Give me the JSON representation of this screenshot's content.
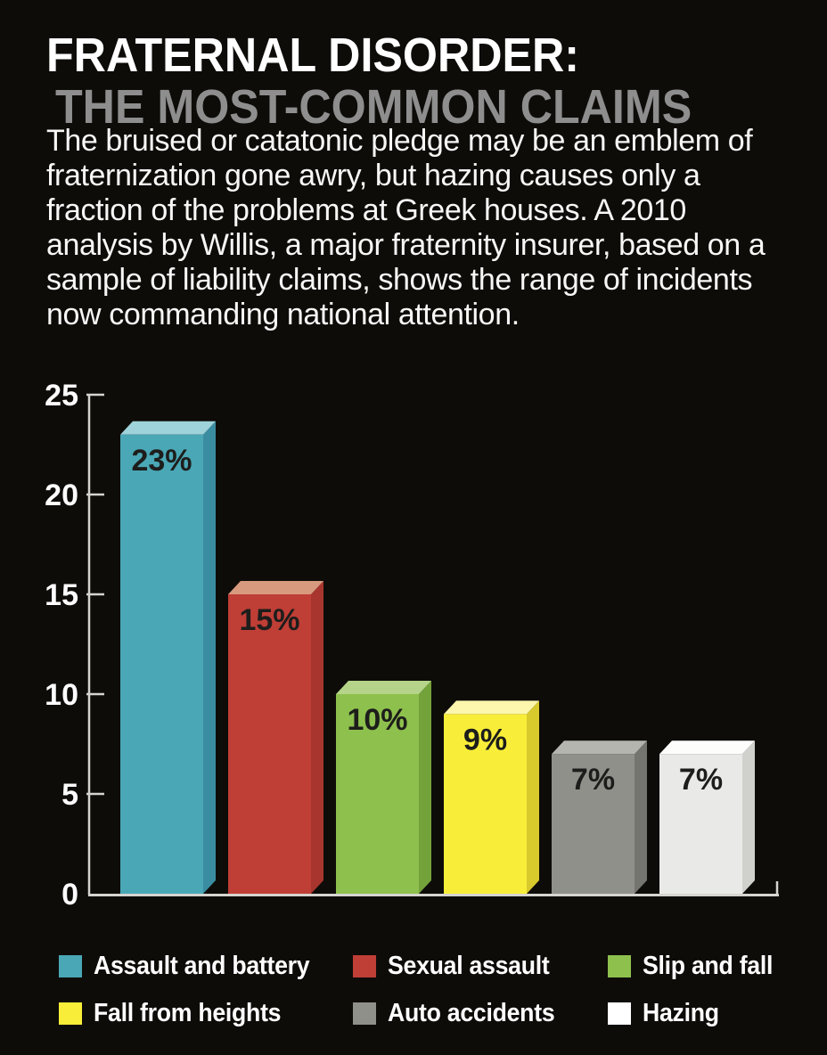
{
  "page": {
    "background": "#0e0c09"
  },
  "header": {
    "title": "FRATERNAL DISORDER:",
    "subtitle": "THE MOST-COMMON CLAIMS",
    "title_color": "#ffffff",
    "subtitle_color": "#8e8e8e"
  },
  "intro": {
    "text": "The bruised or catatonic pledge may be an emblem of fraternization gone awry, but hazing causes only a fraction of the problems at Greek houses. A 2010 analysis by Willis, a major fraternity insurer, based on a sample of liability claims, shows the range of incidents now commanding national attention."
  },
  "chart_data": {
    "type": "bar",
    "style": "3d-extruded",
    "title": "",
    "xlabel": "",
    "ylabel": "",
    "categories": [
      "Assault and battery",
      "Sexual assault",
      "Slip and fall",
      "Fall from heights",
      "Auto accidents",
      "Hazing"
    ],
    "values": [
      23,
      15,
      10,
      9,
      7,
      7
    ],
    "value_labels": [
      "23%",
      "15%",
      "10%",
      "9%",
      "7%",
      "7%"
    ],
    "ylim": [
      0,
      25
    ],
    "yticks": [
      0,
      5,
      10,
      15,
      20,
      25
    ],
    "grid": false,
    "legend_position": "bottom",
    "axis_color": "#d6d4cf",
    "tick_label_color": "#fdfdfd",
    "bar_label_color": "#1d1d1b",
    "colors": [
      {
        "front": "#4aa7b6",
        "top": "#9ed3db",
        "side": "#3a8da0"
      },
      {
        "front": "#bf3e36",
        "top": "#d89a7f",
        "side": "#a8362e"
      },
      {
        "front": "#8ec04d",
        "top": "#b5d489",
        "side": "#73a23b"
      },
      {
        "front": "#f8ee39",
        "top": "#fcf7ad",
        "side": "#d8c92d"
      },
      {
        "front": "#90908b",
        "top": "#b5b5b0",
        "side": "#757570"
      },
      {
        "front": "#e9e9e7",
        "top": "#fdfdfc",
        "side": "#d0d0cc"
      }
    ]
  },
  "legend": {
    "items": [
      {
        "label": "Assault and battery",
        "color": "#4aa7b6"
      },
      {
        "label": "Sexual assault",
        "color": "#bf3e36"
      },
      {
        "label": "Slip and fall",
        "color": "#8ec04d"
      },
      {
        "label": "Fall from heights",
        "color": "#f8ee39"
      },
      {
        "label": "Auto accidents",
        "color": "#90908b"
      },
      {
        "label": "Hazing",
        "color": "#ffffff"
      }
    ]
  }
}
